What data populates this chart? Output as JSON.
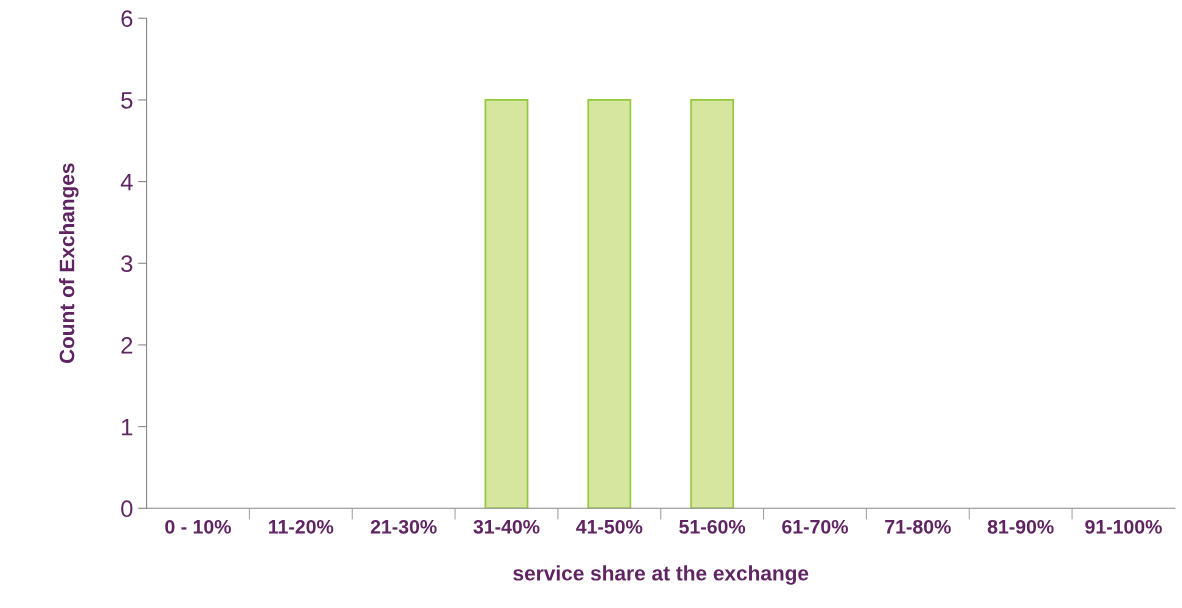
{
  "chart_data": {
    "type": "bar",
    "xlabel": "service share at the exchange",
    "ylabel": "Count of Exchanges",
    "categories": [
      "0 - 10%",
      "11-20%",
      "21-30%",
      "31-40%",
      "41-50%",
      "51-60%",
      "61-70%",
      "71-80%",
      "81-90%",
      "91-100%"
    ],
    "values": [
      0,
      0,
      0,
      5,
      5,
      5,
      0,
      0,
      0,
      0
    ],
    "color": "#d7e69f",
    "ylim": [
      0,
      6
    ],
    "yticks": [
      0,
      1,
      2,
      3,
      4,
      5,
      6
    ],
    "grid": false,
    "legend": false
  }
}
